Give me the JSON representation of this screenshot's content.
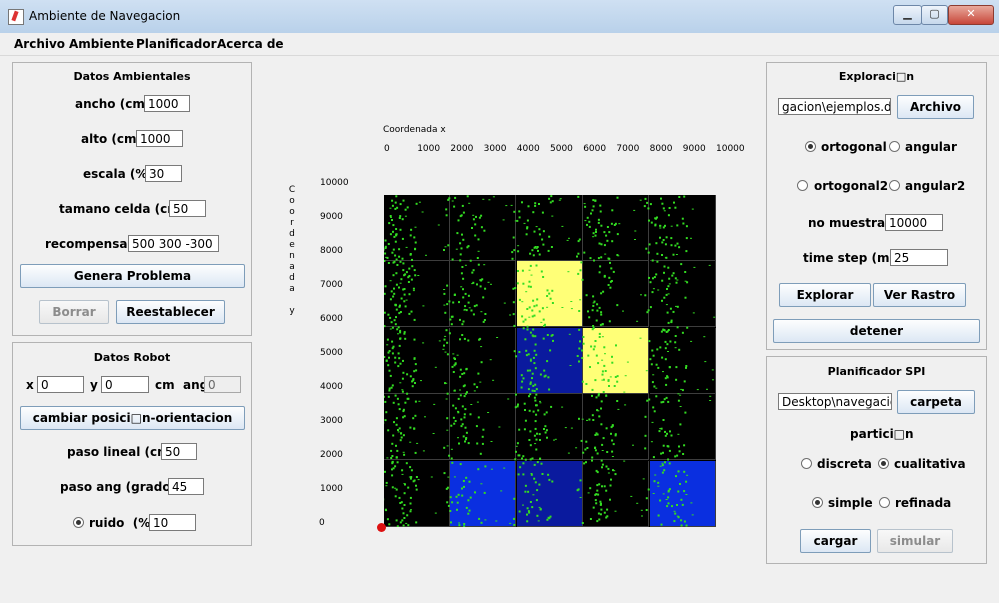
{
  "window": {
    "title": "Ambiente de Navegacion",
    "minimize_label": "▁",
    "maximize_label": "▢",
    "close_label": "✕"
  },
  "menu": [
    "Archivo",
    "Ambiente",
    "Planificador",
    "Acerca de"
  ],
  "datos_ambientales": {
    "title": "Datos Ambientales",
    "ancho_label": "ancho (cm)",
    "ancho_value": "1000",
    "alto_label": "alto (cm)",
    "alto_value": "1000",
    "escala_label": "escala (%)",
    "escala_value": "30",
    "celda_label": "tamano celda (cm)",
    "celda_value": "50",
    "recompensas_label": "recompensas",
    "recompensas_value": "500 300 -300",
    "genera_label": "Genera Problema",
    "borrar_label": "Borrar",
    "reestablecer_label": "Reestablecer"
  },
  "datos_robot": {
    "title": "Datos Robot",
    "x_label": "x",
    "x_value": "0",
    "y_label": "y",
    "y_value": "0",
    "cm_ang_label": "cm  ang",
    "ang_value": "0",
    "cambiar_label": "cambiar posici□n-orientacion",
    "paso_lineal_label": "paso lineal (cm)",
    "paso_lineal_value": "50",
    "paso_ang_label": "paso ang (grados)",
    "paso_ang_value": "45",
    "ruido_label": "ruido  (%)",
    "ruido_value": "10"
  },
  "grid": {
    "x_axis_title": "Coordenada x",
    "y_axis_title": "C\no\no\nr\nd\ne\nn\na\nd\na\n\ny",
    "x_ticks": [
      "0",
      "1000",
      "2000",
      "3000",
      "4000",
      "5000",
      "6000",
      "7000",
      "8000",
      "9000",
      "10000"
    ],
    "y_ticks": [
      "10000",
      "9000",
      "8000",
      "7000",
      "6000",
      "5000",
      "4000",
      "3000",
      "2000",
      "1000",
      "0"
    ],
    "rows": 5,
    "cols": 5,
    "cells": [
      [
        "#000000",
        "#000000",
        "#000000",
        "#000000",
        "#000000"
      ],
      [
        "#000000",
        "#000000",
        "#ffff77",
        "#000000",
        "#000000"
      ],
      [
        "#000000",
        "#000000",
        "#0a1a9e",
        "#ffff77",
        "#000000"
      ],
      [
        "#000000",
        "#000000",
        "#000000",
        "#000000",
        "#000000"
      ],
      [
        "#000000",
        "#0a2fe0",
        "#0a1a9e",
        "#000000",
        "#0a2fe0"
      ]
    ],
    "particle_color": "#33dd22",
    "robot_color": "#dd1111"
  },
  "exploracion": {
    "title": "Exploraci□n",
    "file_value": "gacion\\ejemplos.dat",
    "archivo_label": "Archivo",
    "ortogonal_label": "ortogonal",
    "angular_label": "angular",
    "ortogonal2_label": "ortogonal2",
    "angular2_label": "angular2",
    "muestras_label": "no muestras",
    "muestras_value": "10000",
    "timestep_label": "time step (ms)",
    "timestep_value": "25",
    "explorar_label": "Explorar",
    "rastro_label": "Ver Rastro",
    "detener_label": "detener"
  },
  "planificador": {
    "title": "Planificador SPI",
    "folder_value": "Desktop\\navegacion",
    "carpeta_label": "carpeta",
    "particion_label": "partici□n",
    "discreta_label": "discreta",
    "cualitativa_label": "cualitativa",
    "simple_label": "simple",
    "refinada_label": "refinada",
    "cargar_label": "cargar",
    "simular_label": "simular"
  }
}
